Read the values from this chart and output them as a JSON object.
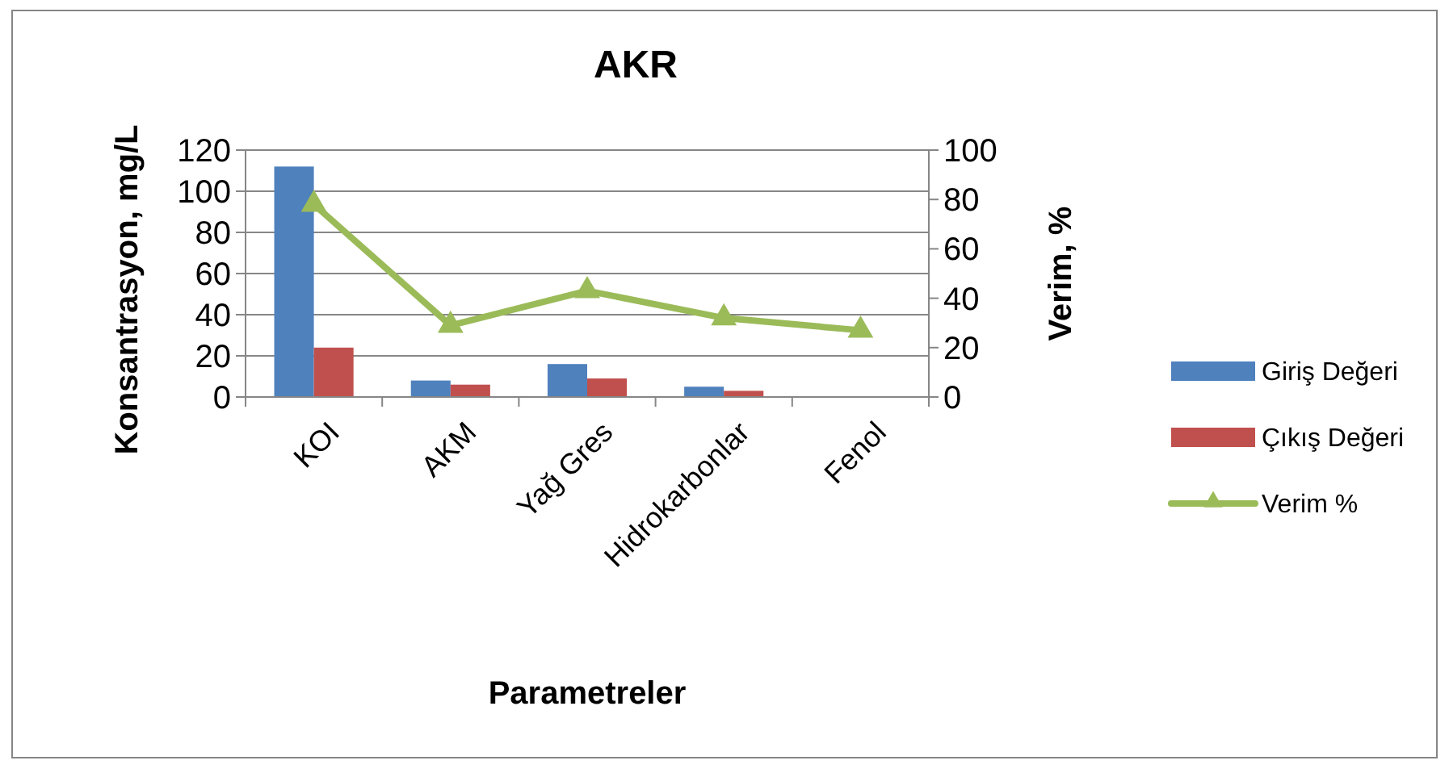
{
  "chart_data": {
    "type": "bar",
    "title": "AKR",
    "xlabel": "Parametreler",
    "ylabel": "Konsantrasyon, mg/L",
    "y2label": "Verim, %",
    "categories": [
      "KOI",
      "AKM",
      "Yağ Gres",
      "Hidrokarbonlar",
      "Fenol"
    ],
    "series": [
      {
        "name": "Giriş Değeri",
        "color": "#4f81bd",
        "values": [
          112,
          8,
          16,
          5,
          null
        ]
      },
      {
        "name": "Çıkış Değeri",
        "color": "#c0504d",
        "values": [
          24,
          6,
          9,
          3,
          null
        ]
      },
      {
        "name": "Verim %",
        "color": "#9bbb59",
        "type": "line",
        "axis": "y2",
        "marker": "triangle",
        "values": [
          78,
          29,
          43,
          32,
          27
        ]
      }
    ],
    "ylim": [
      0,
      120
    ],
    "yticks": [
      0,
      20,
      40,
      60,
      80,
      100,
      120
    ],
    "y2lim": [
      0,
      100
    ],
    "y2ticks": [
      0,
      20,
      40,
      60,
      80,
      100
    ],
    "grid": "y",
    "legend": "right"
  }
}
